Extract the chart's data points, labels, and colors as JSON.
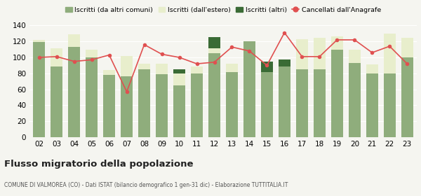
{
  "years": [
    "02",
    "03",
    "04",
    "05",
    "06",
    "07",
    "08",
    "09",
    "10",
    "11",
    "12",
    "13",
    "14",
    "15",
    "16",
    "17",
    "18",
    "19",
    "20",
    "21",
    "22",
    "23"
  ],
  "iscritti_comuni": [
    119,
    89,
    113,
    100,
    78,
    76,
    85,
    79,
    65,
    80,
    105,
    82,
    120,
    82,
    89,
    85,
    85,
    110,
    93,
    80,
    80,
    100
  ],
  "iscritti_estero": [
    3,
    22,
    16,
    10,
    6,
    26,
    7,
    13,
    15,
    9,
    6,
    10,
    0,
    0,
    0,
    38,
    40,
    16,
    17,
    11,
    50,
    25
  ],
  "iscritti_altri": [
    0,
    0,
    0,
    0,
    0,
    0,
    0,
    0,
    5,
    0,
    14,
    0,
    0,
    13,
    8,
    0,
    0,
    0,
    0,
    0,
    0,
    0
  ],
  "cancellati": [
    100,
    101,
    95,
    97,
    103,
    57,
    116,
    104,
    100,
    92,
    94,
    113,
    108,
    90,
    131,
    101,
    101,
    122,
    122,
    106,
    114,
    92
  ],
  "bar_color_comuni": "#8fad7c",
  "bar_color_estero": "#e8eecc",
  "bar_color_altri": "#3a6b35",
  "line_color": "#e05050",
  "bg_color": "#f5f5f0",
  "grid_color": "#ffffff",
  "title": "Flusso migratorio della popolazione",
  "subtitle": "COMUNE DI VALMOREA (CO) - Dati ISTAT (bilancio demografico 1 gen-31 dic) - Elaborazione TUTTITALIA.IT",
  "legend_labels": [
    "Iscritti (da altri comuni)",
    "Iscritti (dall'estero)",
    "Iscritti (altri)",
    "Cancellati dall'Anagrafe"
  ],
  "ylim": [
    0,
    140
  ],
  "yticks": [
    0,
    20,
    40,
    60,
    80,
    100,
    120,
    140
  ]
}
